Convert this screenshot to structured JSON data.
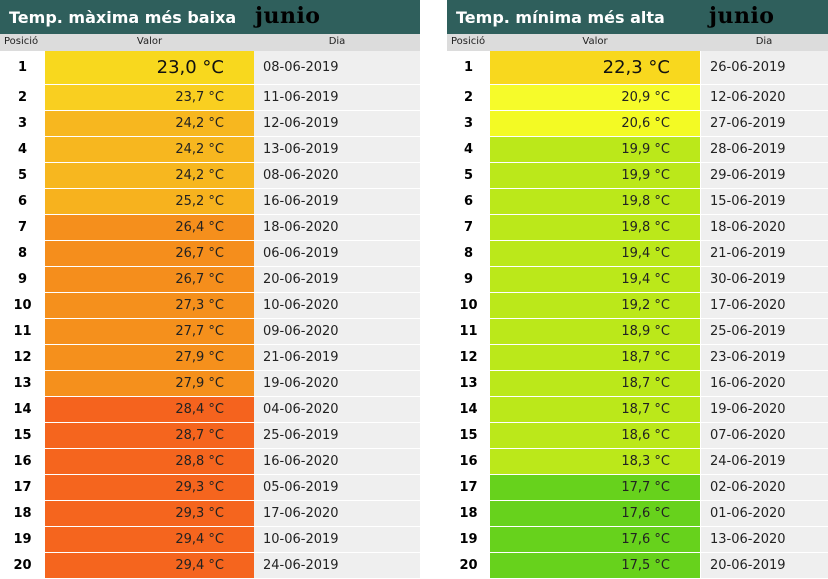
{
  "left": {
    "title": "Temp. màxima més baixa",
    "month": "junio",
    "headers": {
      "pos": "Posició",
      "val": "Valor",
      "day": "Dia"
    },
    "rows": [
      {
        "pos": "1",
        "val": "23,0 °C",
        "day": "08-06-2019",
        "color": "#f8d81e"
      },
      {
        "pos": "2",
        "val": "23,7 °C",
        "day": "11-06-2019",
        "color": "#f9cf20"
      },
      {
        "pos": "3",
        "val": "24,2 °C",
        "day": "12-06-2019",
        "color": "#f7b71f"
      },
      {
        "pos": "4",
        "val": "24,2 °C",
        "day": "13-06-2019",
        "color": "#f7b71f"
      },
      {
        "pos": "5",
        "val": "24,2 °C",
        "day": "08-06-2020",
        "color": "#f7b71f"
      },
      {
        "pos": "6",
        "val": "25,2 °C",
        "day": "16-06-2019",
        "color": "#f7b21e"
      },
      {
        "pos": "7",
        "val": "26,4 °C",
        "day": "18-06-2020",
        "color": "#f58f1c"
      },
      {
        "pos": "8",
        "val": "26,7 °C",
        "day": "06-06-2019",
        "color": "#f58e1c"
      },
      {
        "pos": "9",
        "val": "26,7 °C",
        "day": "20-06-2019",
        "color": "#f58e1c"
      },
      {
        "pos": "10",
        "val": "27,3 °C",
        "day": "10-06-2020",
        "color": "#f5901c"
      },
      {
        "pos": "11",
        "val": "27,7 °C",
        "day": "09-06-2020",
        "color": "#f5901c"
      },
      {
        "pos": "12",
        "val": "27,9 °C",
        "day": "21-06-2019",
        "color": "#f5901c"
      },
      {
        "pos": "13",
        "val": "27,9 °C",
        "day": "19-06-2020",
        "color": "#f5901c"
      },
      {
        "pos": "14",
        "val": "28,4 °C",
        "day": "04-06-2020",
        "color": "#f5631e"
      },
      {
        "pos": "15",
        "val": "28,7 °C",
        "day": "25-06-2019",
        "color": "#f5651e"
      },
      {
        "pos": "16",
        "val": "28,8 °C",
        "day": "16-06-2020",
        "color": "#f5651e"
      },
      {
        "pos": "17",
        "val": "29,3 °C",
        "day": "05-06-2019",
        "color": "#f5651e"
      },
      {
        "pos": "18",
        "val": "29,3 °C",
        "day": "17-06-2020",
        "color": "#f5651e"
      },
      {
        "pos": "19",
        "val": "29,4 °C",
        "day": "10-06-2019",
        "color": "#f5651e"
      },
      {
        "pos": "20",
        "val": "29,4 °C",
        "day": "24-06-2019",
        "color": "#f5651e"
      }
    ]
  },
  "right": {
    "title": "Temp. mínima més alta",
    "month": "junio",
    "headers": {
      "pos": "Posició",
      "val": "Valor",
      "day": "Dia"
    },
    "rows": [
      {
        "pos": "1",
        "val": "22,3 °C",
        "day": "26-06-2019",
        "color": "#f8d81e"
      },
      {
        "pos": "2",
        "val": "20,9 °C",
        "day": "12-06-2020",
        "color": "#f6fb2a"
      },
      {
        "pos": "3",
        "val": "20,6 °C",
        "day": "27-06-2019",
        "color": "#f3fa24"
      },
      {
        "pos": "4",
        "val": "19,9 °C",
        "day": "28-06-2019",
        "color": "#bbe81a"
      },
      {
        "pos": "5",
        "val": "19,9 °C",
        "day": "29-06-2019",
        "color": "#bbe81a"
      },
      {
        "pos": "6",
        "val": "19,8 °C",
        "day": "15-06-2019",
        "color": "#bbe81a"
      },
      {
        "pos": "7",
        "val": "19,8 °C",
        "day": "18-06-2020",
        "color": "#bbe81a"
      },
      {
        "pos": "8",
        "val": "19,4 °C",
        "day": "21-06-2019",
        "color": "#bbe81a"
      },
      {
        "pos": "9",
        "val": "19,4 °C",
        "day": "30-06-2019",
        "color": "#bbe81a"
      },
      {
        "pos": "10",
        "val": "19,2 °C",
        "day": "17-06-2020",
        "color": "#bbe81a"
      },
      {
        "pos": "11",
        "val": "18,9 °C",
        "day": "25-06-2019",
        "color": "#bbe81a"
      },
      {
        "pos": "12",
        "val": "18,7 °C",
        "day": "23-06-2019",
        "color": "#bbe81a"
      },
      {
        "pos": "13",
        "val": "18,7 °C",
        "day": "16-06-2020",
        "color": "#bbe81a"
      },
      {
        "pos": "14",
        "val": "18,7 °C",
        "day": "19-06-2020",
        "color": "#bbe81a"
      },
      {
        "pos": "15",
        "val": "18,6 °C",
        "day": "07-06-2020",
        "color": "#bbe81a"
      },
      {
        "pos": "16",
        "val": "18,3 °C",
        "day": "24-06-2019",
        "color": "#bbe81a"
      },
      {
        "pos": "17",
        "val": "17,7 °C",
        "day": "02-06-2020",
        "color": "#67d21c"
      },
      {
        "pos": "18",
        "val": "17,6 °C",
        "day": "01-06-2020",
        "color": "#67d21c"
      },
      {
        "pos": "19",
        "val": "17,6 °C",
        "day": "13-06-2020",
        "color": "#67d21c"
      },
      {
        "pos": "20",
        "val": "17,5 °C",
        "day": "20-06-2019",
        "color": "#67d21c"
      }
    ]
  }
}
